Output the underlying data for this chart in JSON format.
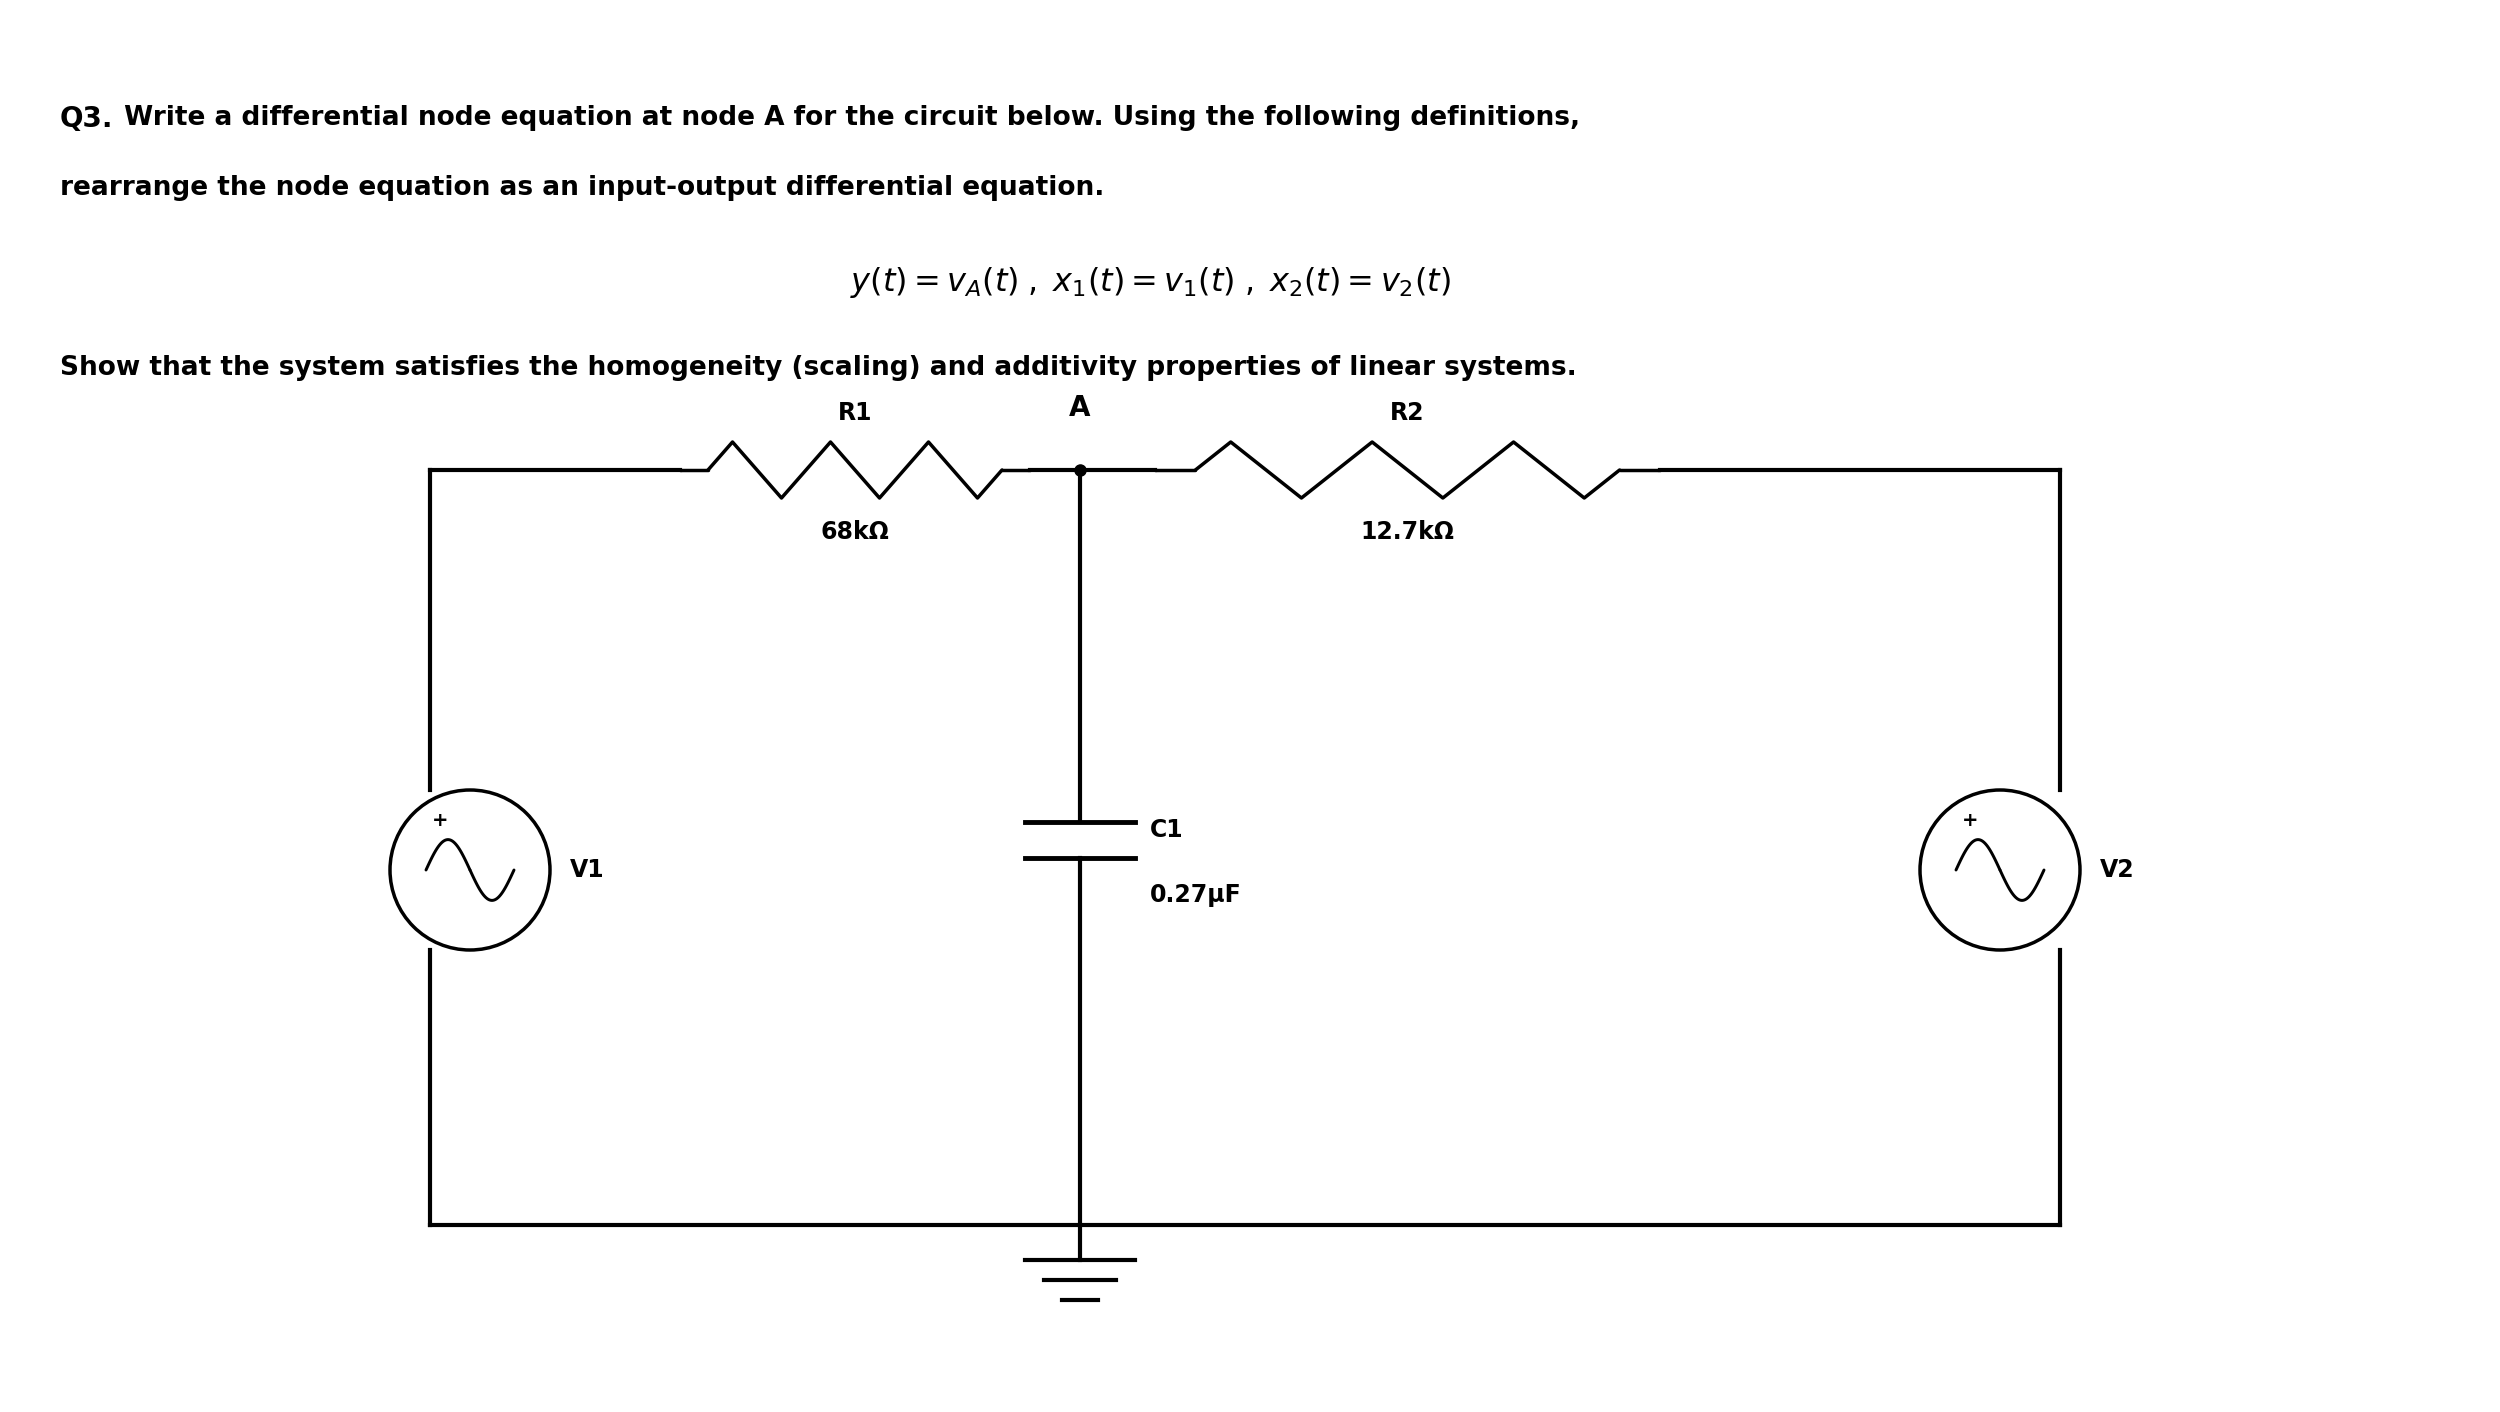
{
  "bg_color": "#ffffff",
  "text_color": "#000000",
  "line1_bold": "Q3.",
  "line1_rest": " Write a differential node equation at node A for the circuit below. Using the following definitions,",
  "line2": "rearrange the node equation as an input-output differential equation.",
  "line3": "Show that the system satisfies the homogeneity (scaling) and additivity properties of linear systems.",
  "R1_label": "R1",
  "R1_val": "68kΩ",
  "R2_label": "R2",
  "R2_val": "12.7kΩ",
  "C1_label": "C1",
  "C1_val": "0.27μF",
  "V1_label": "V1",
  "V2_label": "V2",
  "node_A": "A",
  "figsize": [
    25.0,
    14.12
  ],
  "dpi": 100,
  "fs_q3": 20,
  "fs_text": 19,
  "fs_formula": 23,
  "fs_circuit_label": 17,
  "lw_wire": 3.0,
  "lw_resistor": 2.5,
  "lw_cap": 3.5,
  "lw_source": 2.5
}
